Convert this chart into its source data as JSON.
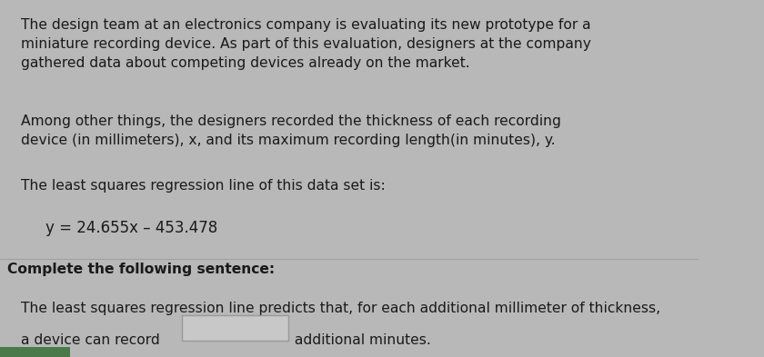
{
  "bg_color": "#b8b8b8",
  "card_color": "#d0d0d0",
  "text_color": "#1a1a1a",
  "para1": "The design team at an electronics company is evaluating its new prototype for a\nminiature recording device. As part of this evaluation, designers at the company\ngathered data about competing devices already on the market.",
  "para2": "Among other things, the designers recorded the thickness of each recording\ndevice (in millimeters), x, and its maximum recording length​(in minutes), y.",
  "para3": "The least squares regression line of this data set is:",
  "equation": "y = 24.655x – 453.478",
  "section2_label": "Complete the following sentence:",
  "line1_last": "The least squares regression line predicts that, for each additional millimeter of thickness,",
  "line2a": "a device can record ",
  "line2b": " additional minutes.",
  "box_fill": "#c8c8c8",
  "box_edge": "#999999",
  "green_bar_color": "#4a7a4a",
  "font_size_main": 11.2,
  "font_size_equation": 12.0
}
